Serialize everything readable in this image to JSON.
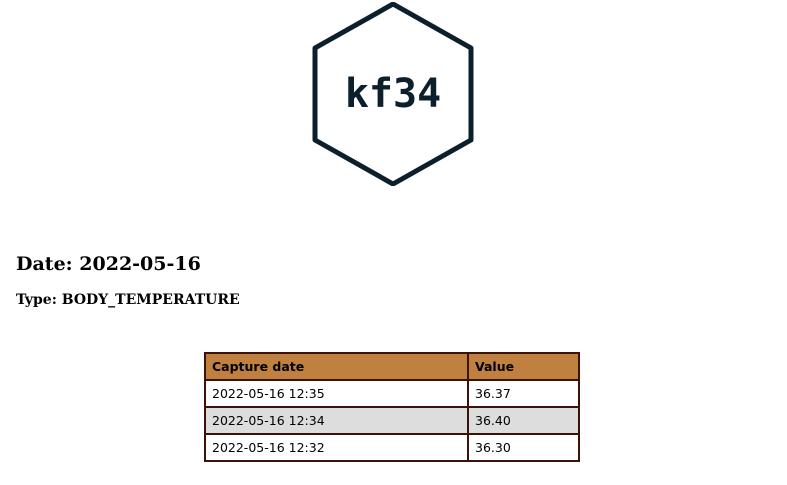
{
  "logo": {
    "text": "kf34",
    "icon": "hexagon-logo",
    "color": "#0c1f2c"
  },
  "report": {
    "date_heading": "Date: 2022-05-16",
    "type_heading": "Type: BODY_TEMPERATURE"
  },
  "table": {
    "header_color": "#c08040",
    "stripe_color": "#dddddd",
    "border_color": "#3a1208",
    "headers": [
      "Capture date",
      "Value"
    ],
    "rows": [
      [
        "2022-05-16 12:35",
        "36.37"
      ],
      [
        "2022-05-16 12:34",
        "36.40"
      ],
      [
        "2022-05-16 12:32",
        "36.30"
      ]
    ]
  }
}
